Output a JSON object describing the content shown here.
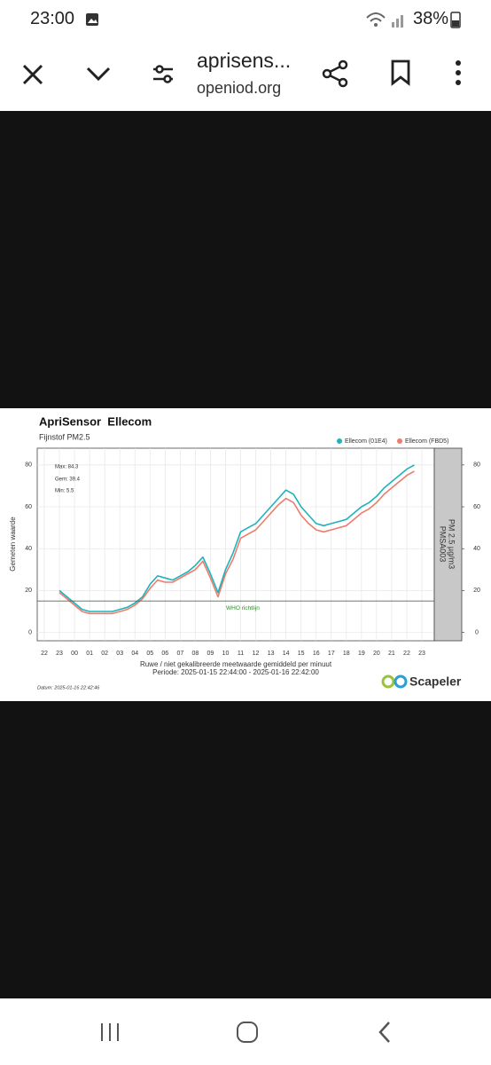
{
  "status_bar": {
    "time": "23:00",
    "battery": "38%"
  },
  "toolbar": {
    "title": "aprisens...",
    "url": "openiod.org"
  },
  "chart_data": {
    "type": "line",
    "title": "ApriSensor  Ellecom",
    "subtitle": "Fijnstof PM2.5",
    "y_label": "Gemeten waarde",
    "x_label": "Ruwe / niet gekalibreerde meetwaarde gemiddeld per minuut",
    "period": "Periode: 2025-01-15 22:44:00 - 2025-01-16 22:42:00",
    "date_note": "Datum: 2025-01-16 22:42:46",
    "stats": [
      "Max: 84.3",
      "Gem: 39.4",
      "Min: 5.5"
    ],
    "strip_labels": [
      "PMSA003",
      "PM 2.5 µg/m3"
    ],
    "reference_line": {
      "value": 15,
      "label": "WHO richtlijn",
      "color": "#4f6b4f"
    },
    "brand": "Scapeler",
    "categories": [
      "22",
      null,
      "23",
      null,
      "00",
      null,
      "01",
      null,
      "02",
      null,
      "03",
      null,
      "04",
      null,
      "05",
      null,
      "06",
      null,
      "07",
      null,
      "08",
      null,
      "09",
      null,
      "10",
      null,
      "11",
      null,
      "12",
      null,
      "13",
      null,
      "14",
      null,
      "15",
      null,
      "16",
      null,
      "17",
      null,
      "18",
      null,
      "19",
      null,
      "20",
      null,
      "21",
      null,
      "22",
      null,
      "23"
    ],
    "series": [
      {
        "name": "Ellecom (01E4)",
        "color": "#1db3bb",
        "values": [
          null,
          null,
          20,
          17,
          14,
          11,
          10,
          10,
          10,
          10,
          11,
          12,
          14,
          17,
          23,
          27,
          26,
          25,
          27,
          29,
          32,
          36,
          28,
          19,
          30,
          38,
          48,
          50,
          52,
          56,
          60,
          64,
          68,
          66,
          60,
          56,
          52,
          51,
          52,
          53,
          54,
          57,
          60,
          62,
          65,
          69,
          72,
          75,
          78,
          80,
          null
        ]
      },
      {
        "name": "Ellecom (FBD5)",
        "color": "#ee7b6b",
        "values": [
          null,
          null,
          19,
          16,
          13,
          10,
          9,
          9,
          9,
          9,
          10,
          11,
          13,
          16,
          21,
          25,
          24,
          24,
          26,
          28,
          30,
          34,
          26,
          17,
          28,
          35,
          45,
          47,
          49,
          53,
          57,
          61,
          64,
          62,
          56,
          52,
          49,
          48,
          49,
          50,
          51,
          54,
          57,
          59,
          62,
          66,
          69,
          72,
          75,
          77,
          null
        ]
      }
    ],
    "ylim": [
      -4,
      88
    ],
    "yticks": [
      0,
      20,
      40,
      60,
      80
    ],
    "grid": true,
    "legend": "top-right"
  }
}
